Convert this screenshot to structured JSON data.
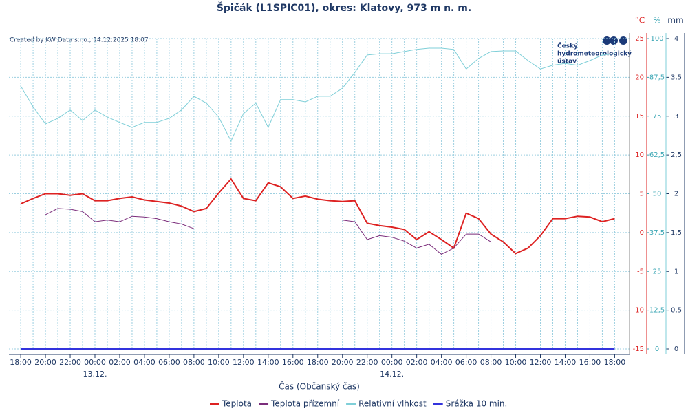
{
  "chart_data": {
    "type": "line",
    "title": "Špičák (L1SPIC01), okres: Klatovy, 973 m n. m.",
    "credit": "Created by KW Data s.r.o., 14.12.2025 18:07",
    "logo": [
      "Český",
      "hydrometeorologický",
      "ústav"
    ],
    "x_label": "Čas (Občanský čas)",
    "y_unit": "°C",
    "y2_unit": "%",
    "y3_unit": "mm",
    "x": [
      0,
      1,
      2,
      3,
      4,
      5,
      6,
      7,
      8,
      9,
      10,
      11,
      12,
      13,
      14,
      15,
      16,
      17,
      18,
      19,
      20,
      21,
      22,
      23,
      24,
      25,
      26,
      27,
      28,
      29,
      30,
      31,
      32,
      33,
      34,
      35,
      36,
      37,
      38,
      39,
      40,
      41,
      42,
      43,
      44,
      45,
      46,
      47,
      48
    ],
    "xlim": [
      -0.95,
      49.2
    ],
    "xticks": [
      {
        "value": 0,
        "label": "18:00"
      },
      {
        "value": 2,
        "label": "20:00"
      },
      {
        "value": 4,
        "label": "22:00"
      },
      {
        "value": 6,
        "label": "00:00"
      },
      {
        "value": 8,
        "label": "02:00"
      },
      {
        "value": 10,
        "label": "04:00"
      },
      {
        "value": 12,
        "label": "06:00"
      },
      {
        "value": 14,
        "label": "08:00"
      },
      {
        "value": 16,
        "label": "10:00"
      },
      {
        "value": 18,
        "label": "12:00"
      },
      {
        "value": 20,
        "label": "14:00"
      },
      {
        "value": 22,
        "label": "16:00"
      },
      {
        "value": 24,
        "label": "18:00"
      },
      {
        "value": 26,
        "label": "20:00"
      },
      {
        "value": 28,
        "label": "22:00"
      },
      {
        "value": 30,
        "label": "00:00"
      },
      {
        "value": 32,
        "label": "02:00"
      },
      {
        "value": 34,
        "label": "04:00"
      },
      {
        "value": 36,
        "label": "06:00"
      },
      {
        "value": 38,
        "label": "08:00"
      },
      {
        "value": 40,
        "label": "10:00"
      },
      {
        "value": 42,
        "label": "12:00"
      },
      {
        "value": 44,
        "label": "14:00"
      },
      {
        "value": 46,
        "label": "16:00"
      },
      {
        "value": 48,
        "label": "18:00"
      }
    ],
    "xminorticks": [
      1,
      3,
      5,
      7,
      9,
      11,
      13,
      15,
      17,
      19,
      21,
      23,
      25,
      27,
      29,
      31,
      33,
      35,
      37,
      39,
      41,
      43,
      45,
      47
    ],
    "day_labels": [
      {
        "value": 6,
        "label": "13.12."
      },
      {
        "value": 30,
        "label": "14.12."
      }
    ],
    "ylim": [
      -15,
      25
    ],
    "yticks": [
      -15,
      -10,
      -5,
      0,
      5,
      10,
      15,
      20,
      25
    ],
    "y2lim": [
      0,
      100
    ],
    "y2ticks": [
      0,
      {
        "value": 12.5,
        "label": "12,5"
      },
      25,
      {
        "value": 37.5,
        "label": "37,5"
      },
      50,
      {
        "value": 62.5,
        "label": "62,5"
      },
      75,
      {
        "value": 87.5,
        "label": "87,5"
      },
      100
    ],
    "y3lim": [
      0,
      4
    ],
    "y3ticks": [
      0,
      {
        "value": 0.5,
        "label": "0,5"
      },
      1,
      {
        "value": 1.5,
        "label": "1,5"
      },
      2,
      {
        "value": 2.5,
        "label": "2,5"
      },
      3,
      {
        "value": 3.5,
        "label": "3,5"
      },
      4
    ],
    "grid": true,
    "legend": "bottom",
    "series": [
      {
        "name": "Teplota",
        "color": "#dd2222",
        "axis": "y",
        "values": [
          3.7,
          4.4,
          5.0,
          5.0,
          4.8,
          5.0,
          4.1,
          4.1,
          4.4,
          4.6,
          4.2,
          4.0,
          3.8,
          3.4,
          2.7,
          3.1,
          5.1,
          6.9,
          4.4,
          4.1,
          6.4,
          5.9,
          4.4,
          4.7,
          4.3,
          4.1,
          4.0,
          4.1,
          1.2,
          0.9,
          0.7,
          0.4,
          -0.9,
          0.1,
          -0.9,
          -2.0,
          2.5,
          1.8,
          -0.2,
          -1.2,
          -2.7,
          -2.0,
          -0.4,
          1.8,
          1.8,
          2.1,
          2.0,
          1.4,
          1.8
        ]
      },
      {
        "name": "Teplota přízemní",
        "color": "#7b2d7b",
        "axis": "y",
        "values": [
          null,
          null,
          2.3,
          3.1,
          3.0,
          2.7,
          1.4,
          1.6,
          1.4,
          2.1,
          2.0,
          1.8,
          1.4,
          1.1,
          0.5,
          null,
          null,
          null,
          null,
          null,
          null,
          null,
          null,
          null,
          null,
          null,
          1.6,
          1.4,
          -0.9,
          -0.4,
          -0.6,
          -1.1,
          -2.0,
          -1.5,
          -2.8,
          -2.0,
          -0.2,
          -0.2,
          -1.2,
          null,
          null,
          null,
          null,
          null,
          null,
          null,
          null,
          null,
          null
        ]
      },
      {
        "name": "Relativní vlhkost",
        "color": "#7fcfd8",
        "axis": "y2",
        "values": [
          84.7,
          78,
          72.5,
          74.3,
          77,
          73.6,
          77,
          74.7,
          73,
          71.4,
          73,
          73,
          74.3,
          77,
          81.4,
          79.2,
          74.7,
          67,
          75.8,
          79.2,
          71.4,
          80.3,
          80.3,
          79.6,
          81.4,
          81.4,
          84,
          89.1,
          94.7,
          95.1,
          95.1,
          95.8,
          96.5,
          96.9,
          96.9,
          96.5,
          90.2,
          93.6,
          95.8,
          96,
          96,
          92.9,
          90.2,
          91.4,
          92,
          91.4,
          92.9,
          94.7,
          95.1
        ]
      },
      {
        "name": "Srážka 10 min.",
        "color": "#3333dd",
        "axis": "y3",
        "values": [
          0,
          0,
          0,
          0,
          0,
          0,
          0,
          0,
          0,
          0,
          0,
          0,
          0,
          0,
          0,
          0,
          0,
          0,
          0,
          0,
          0,
          0,
          0,
          0,
          0,
          0,
          0,
          0,
          0,
          0,
          0,
          0,
          0,
          0,
          0,
          0,
          0,
          0,
          0,
          0,
          0,
          0,
          0,
          0,
          0,
          0,
          0,
          0,
          0
        ]
      }
    ]
  }
}
